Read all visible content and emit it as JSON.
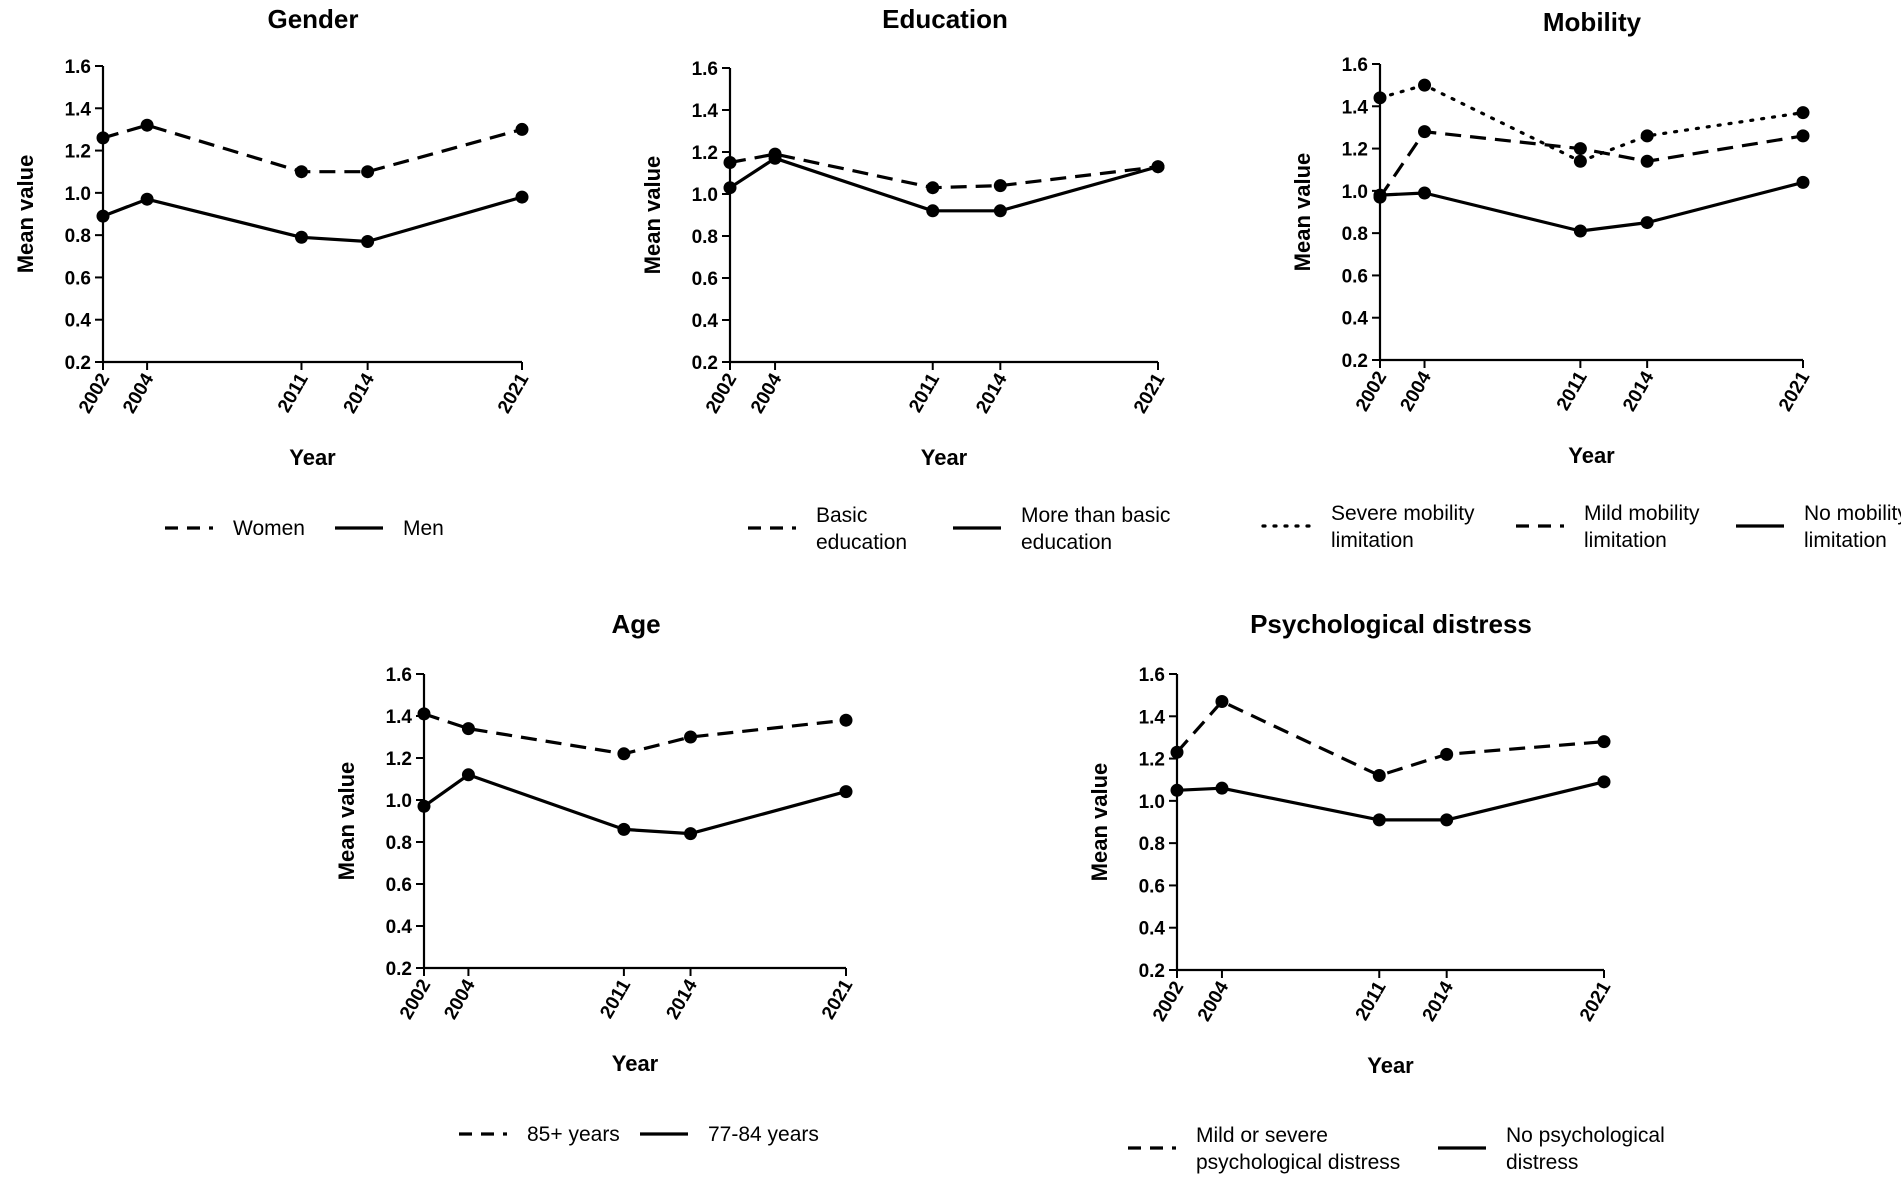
{
  "chart_data": [
    {
      "id": "gender",
      "type": "line",
      "title": "Gender",
      "xlabel": "Year",
      "ylabel": "Mean value",
      "x": [
        2002,
        2004,
        2011,
        2014,
        2021
      ],
      "x_tick_labels": [
        "2002",
        "2004",
        "2011",
        "2014",
        "2021"
      ],
      "ylim": [
        0.2,
        1.6
      ],
      "y_ticks": [
        "0.2",
        "0.4",
        "0.6",
        "0.8",
        "1.0",
        "1.2",
        "1.4",
        "1.6"
      ],
      "series": [
        {
          "name": "Women",
          "style": "dashed",
          "values": [
            1.26,
            1.32,
            1.1,
            1.1,
            1.3
          ]
        },
        {
          "name": "Men",
          "style": "solid",
          "values": [
            0.89,
            0.97,
            0.79,
            0.77,
            0.98
          ]
        }
      ],
      "legend": [
        {
          "lines": [
            "Women"
          ],
          "style": "dashed"
        },
        {
          "lines": [
            "Men"
          ],
          "style": "solid"
        }
      ]
    },
    {
      "id": "education",
      "type": "line",
      "title": "Education",
      "xlabel": "Year",
      "ylabel": "Mean value",
      "x": [
        2002,
        2004,
        2011,
        2014,
        2021
      ],
      "x_tick_labels": [
        "2002",
        "2004",
        "2011",
        "2014",
        "2021"
      ],
      "ylim": [
        0.2,
        1.6
      ],
      "y_ticks": [
        "0.2",
        "0.4",
        "0.6",
        "0.8",
        "1.0",
        "1.2",
        "1.4",
        "1.6"
      ],
      "series": [
        {
          "name": "Basic education",
          "style": "dashed",
          "values": [
            1.15,
            1.19,
            1.03,
            1.04,
            1.13
          ]
        },
        {
          "name": "More than basic education",
          "style": "solid",
          "values": [
            1.03,
            1.17,
            0.92,
            0.92,
            1.13
          ]
        }
      ],
      "legend": [
        {
          "lines": [
            "Basic",
            "education"
          ],
          "style": "dashed"
        },
        {
          "lines": [
            "More than basic",
            "education"
          ],
          "style": "solid"
        }
      ]
    },
    {
      "id": "mobility",
      "type": "line",
      "title": "Mobility",
      "xlabel": "Year",
      "ylabel": "Mean value",
      "x": [
        2002,
        2004,
        2011,
        2014,
        2021
      ],
      "x_tick_labels": [
        "2002",
        "2004",
        "2011",
        "2014",
        "2021"
      ],
      "ylim": [
        0.2,
        1.6
      ],
      "y_ticks": [
        "0.2",
        "0.4",
        "0.6",
        "0.8",
        "1.0",
        "1.2",
        "1.4",
        "1.6"
      ],
      "series": [
        {
          "name": "Severe mobility limitation",
          "style": "dotted",
          "values": [
            1.44,
            1.5,
            1.14,
            1.26,
            1.37
          ]
        },
        {
          "name": "Mild mobility limitation",
          "style": "dashed",
          "values": [
            0.97,
            1.28,
            1.2,
            1.14,
            1.26
          ]
        },
        {
          "name": "No mobility limitation",
          "style": "solid",
          "values": [
            0.98,
            0.99,
            0.81,
            0.85,
            1.04
          ]
        }
      ],
      "legend": [
        {
          "lines": [
            "Severe mobility",
            "limitation"
          ],
          "style": "dotted"
        },
        {
          "lines": [
            "Mild mobility",
            "limitation"
          ],
          "style": "dashed"
        },
        {
          "lines": [
            "No mobility",
            "limitation"
          ],
          "style": "solid"
        }
      ]
    },
    {
      "id": "age",
      "type": "line",
      "title": "Age",
      "xlabel": "Year",
      "ylabel": "Mean value",
      "x": [
        2002,
        2004,
        2011,
        2014,
        2021
      ],
      "x_tick_labels": [
        "2002",
        "2004",
        "2011",
        "2014",
        "2021"
      ],
      "ylim": [
        0.2,
        1.6
      ],
      "y_ticks": [
        "0.2",
        "0.4",
        "0.6",
        "0.8",
        "1.0",
        "1.2",
        "1.4",
        "1.6"
      ],
      "series": [
        {
          "name": "85+ years",
          "style": "dashed",
          "values": [
            1.41,
            1.34,
            1.22,
            1.3,
            1.38
          ]
        },
        {
          "name": "77-84 years",
          "style": "solid",
          "values": [
            0.97,
            1.12,
            0.86,
            0.84,
            1.04
          ]
        }
      ],
      "legend": [
        {
          "lines": [
            "85+ years"
          ],
          "style": "dashed"
        },
        {
          "lines": [
            "77-84 years"
          ],
          "style": "solid"
        }
      ]
    },
    {
      "id": "psych",
      "type": "line",
      "title": "Psychological distress",
      "xlabel": "Year",
      "ylabel": "Mean value",
      "x": [
        2002,
        2004,
        2011,
        2014,
        2021
      ],
      "x_tick_labels": [
        "2002",
        "2004",
        "2011",
        "2014",
        "2021"
      ],
      "ylim": [
        0.2,
        1.6
      ],
      "y_ticks": [
        "0.2",
        "0.4",
        "0.6",
        "0.8",
        "1.0",
        "1.2",
        "1.4",
        "1.6"
      ],
      "series": [
        {
          "name": "Mild or severe psychological distress",
          "style": "dashed",
          "values": [
            1.23,
            1.47,
            1.12,
            1.22,
            1.28
          ]
        },
        {
          "name": "No psychological distress",
          "style": "solid",
          "values": [
            1.05,
            1.06,
            0.91,
            0.91,
            1.09
          ]
        }
      ],
      "legend": [
        {
          "lines": [
            "Mild or severe",
            "psychological distress"
          ],
          "style": "dashed"
        },
        {
          "lines": [
            "No psychological",
            "distress"
          ],
          "style": "solid"
        }
      ]
    }
  ]
}
